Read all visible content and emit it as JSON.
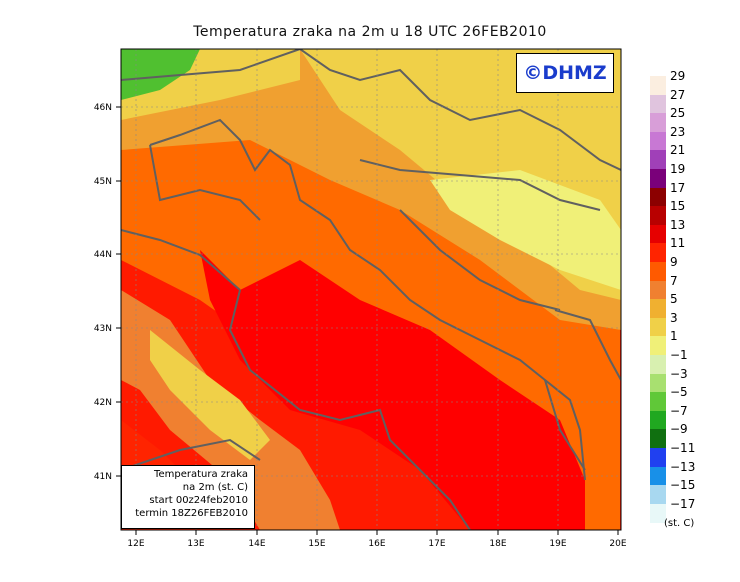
{
  "title": "Temperatura zraka na 2m u 18 UTC 26FEB2010",
  "brand": "©DHMZ",
  "info_box": {
    "line1": "Temperatura zraka",
    "line2": "na 2m (st. C)",
    "line3": "start 00z24feb2010",
    "line4": "termin 18Z26FEB2010"
  },
  "legend": {
    "unit": "(st. C)",
    "labels": [
      "29",
      "27",
      "25",
      "23",
      "21",
      "19",
      "17",
      "15",
      "13",
      "11",
      "9",
      "7",
      "5",
      "3",
      "1",
      "−1",
      "−3",
      "−5",
      "−7",
      "−9",
      "−11",
      "−13",
      "−15",
      "−17"
    ],
    "colors": [
      "#fbeee0",
      "#e0c4de",
      "#d89ed8",
      "#c878d4",
      "#a040b8",
      "#7a007a",
      "#8c0000",
      "#b80000",
      "#e60000",
      "#ff2400",
      "#ff5a00",
      "#f08030",
      "#f0b030",
      "#f0d048",
      "#f0f078",
      "#d8f0b0",
      "#a8e070",
      "#60c838",
      "#20a820",
      "#107010",
      "#2040f0",
      "#1890e8",
      "#a8d8f0",
      "#e8f8f8"
    ]
  },
  "axes": {
    "x_ticks": [
      "12E",
      "13E",
      "14E",
      "15E",
      "16E",
      "17E",
      "18E",
      "19E",
      "20E"
    ],
    "y_ticks": [
      "46N",
      "45N",
      "44N",
      "43N",
      "42N",
      "41N"
    ]
  },
  "colors": {
    "coast": "#606060",
    "sea_hot": "#ff0000",
    "warm": "#ff6a00",
    "mid": "#f0a030",
    "mild": "#f0d048",
    "cool": "#f0f078",
    "cold": "#50c030"
  }
}
